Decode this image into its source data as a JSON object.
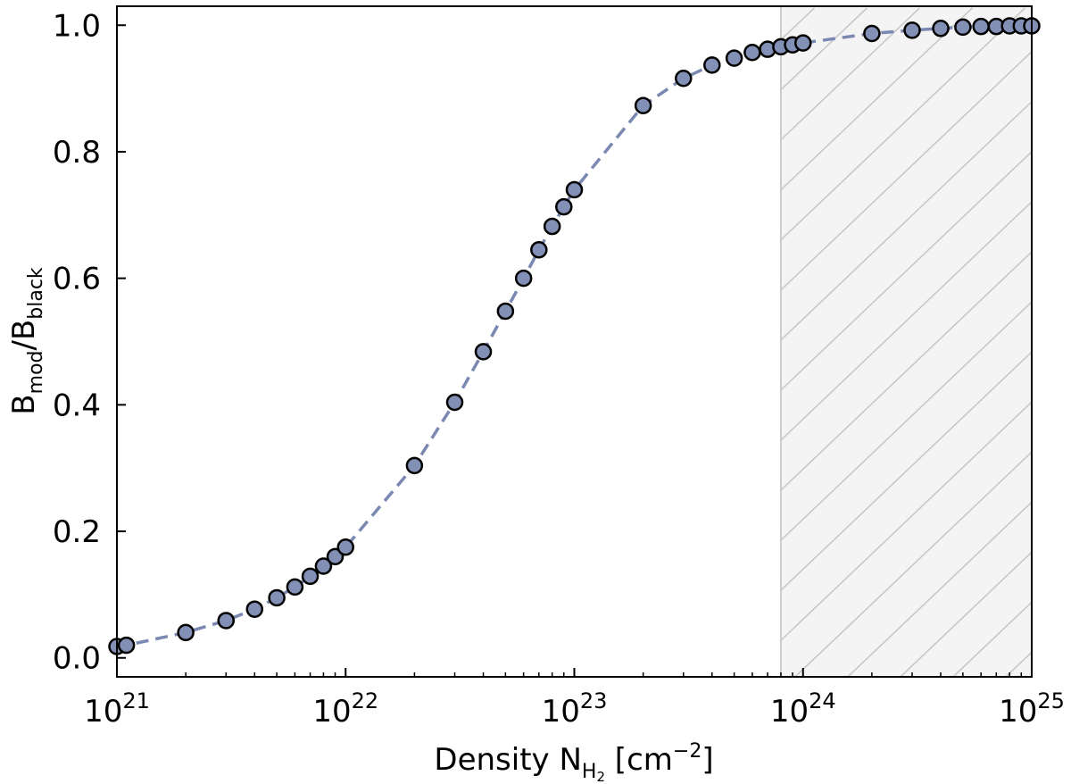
{
  "chart_data": {
    "type": "scatter",
    "xscale": "log",
    "xlim": [
      1e+21,
      1e+25
    ],
    "ylim": [
      -0.03,
      1.03
    ],
    "grid": false,
    "line_style": "dashed",
    "colors": {
      "marker_fill": "#8390b6",
      "marker_edge": "#000000",
      "line": "#7b88b1",
      "shade_fill": "#f4f4f4",
      "hatch": "#c8c8c8",
      "boundary": "#cccccc"
    },
    "xlabel": {
      "main": "Density N",
      "sub": "H",
      "sub2": "2",
      "unit_pre": " [cm",
      "unit_sup": "−2",
      "unit_post": "]"
    },
    "ylabel": {
      "b1": "B",
      "s1": "mod",
      "mid": "/B",
      "s2": "black"
    },
    "x_ticks": [
      {
        "value": 1e+21,
        "base": "10",
        "exp": "21"
      },
      {
        "value": 1e+22,
        "base": "10",
        "exp": "22"
      },
      {
        "value": 1e+23,
        "base": "10",
        "exp": "23"
      },
      {
        "value": 1e+24,
        "base": "10",
        "exp": "24"
      },
      {
        "value": 1e+25,
        "base": "10",
        "exp": "25"
      }
    ],
    "y_ticks": [
      {
        "value": 0.0,
        "label": "0.0"
      },
      {
        "value": 0.2,
        "label": "0.2"
      },
      {
        "value": 0.4,
        "label": "0.4"
      },
      {
        "value": 0.6,
        "label": "0.6"
      },
      {
        "value": 0.8,
        "label": "0.8"
      },
      {
        "value": 1.0,
        "label": "1.0"
      }
    ],
    "shaded_region": {
      "x_start": 8e+23,
      "x_end": 1e+25,
      "hatched": true
    },
    "x": [
      1e+21,
      1.1e+21,
      2e+21,
      3e+21,
      4e+21,
      5e+21,
      6e+21,
      7e+21,
      8e+21,
      9e+21,
      1e+22,
      2e+22,
      3e+22,
      4e+22,
      5e+22,
      6e+22,
      7e+22,
      8e+22,
      9e+22,
      1e+23,
      2e+23,
      3e+23,
      4e+23,
      5e+23,
      6e+23,
      7e+23,
      8e+23,
      9e+23,
      1e+24,
      2e+24,
      3e+24,
      4e+24,
      5e+24,
      6e+24,
      7e+24,
      8e+24,
      9e+24,
      1e+25
    ],
    "y": [
      0.018,
      0.02,
      0.04,
      0.059,
      0.077,
      0.095,
      0.112,
      0.129,
      0.145,
      0.16,
      0.175,
      0.304,
      0.404,
      0.484,
      0.548,
      0.6,
      0.645,
      0.682,
      0.713,
      0.74,
      0.873,
      0.916,
      0.937,
      0.948,
      0.957,
      0.962,
      0.966,
      0.969,
      0.972,
      0.987,
      0.992,
      0.995,
      0.997,
      0.998,
      0.998,
      0.999,
      0.999,
      0.999
    ]
  }
}
